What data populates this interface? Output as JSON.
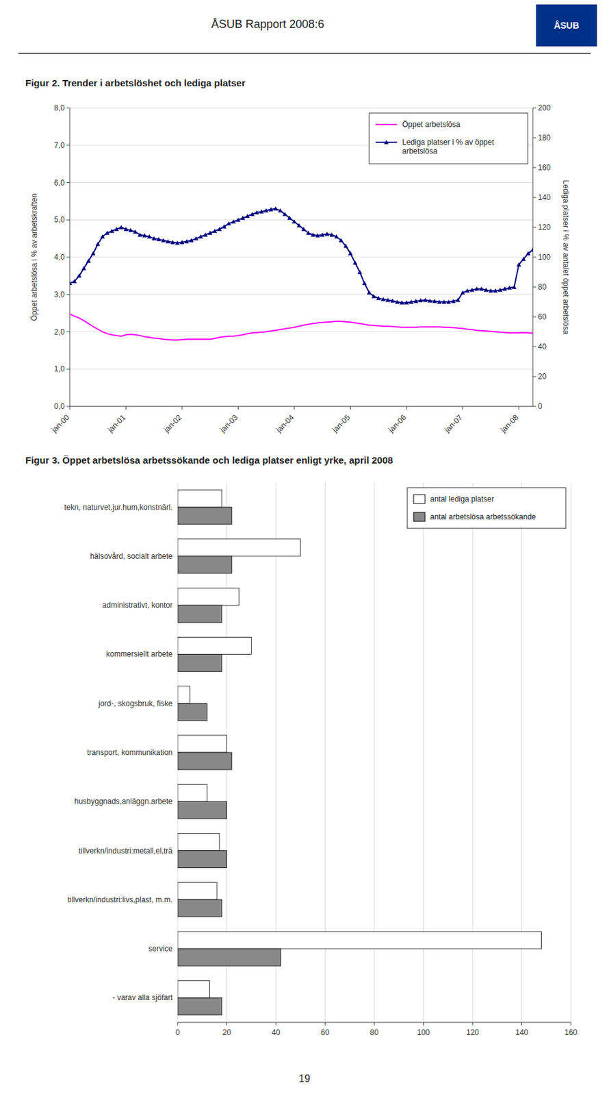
{
  "header_title": "ÅSUB Rapport 2008:6",
  "logo": {
    "text": "ÅSUB",
    "color": "#003087"
  },
  "page_number": "19",
  "chart_data": [
    {
      "type": "line",
      "title": "Figur 2. Trender i arbetslöshet och lediga platser",
      "categories": [
        "jan-00",
        null,
        null,
        null,
        null,
        null,
        null,
        null,
        null,
        null,
        null,
        null,
        "jan-01",
        null,
        null,
        null,
        null,
        null,
        null,
        null,
        null,
        null,
        null,
        null,
        "jan-02",
        null,
        null,
        null,
        null,
        null,
        null,
        null,
        null,
        null,
        null,
        null,
        "jan-03",
        null,
        null,
        null,
        null,
        null,
        null,
        null,
        null,
        null,
        null,
        null,
        "jan-04",
        null,
        null,
        null,
        null,
        null,
        null,
        null,
        null,
        null,
        null,
        null,
        "jan-05",
        null,
        null,
        null,
        null,
        null,
        null,
        null,
        null,
        null,
        null,
        null,
        "jan-06",
        null,
        null,
        null,
        null,
        null,
        null,
        null,
        null,
        null,
        null,
        null,
        "jan-07",
        null,
        null,
        null,
        null,
        null,
        null,
        null,
        null,
        null,
        null,
        null,
        "jan-08",
        null,
        null,
        null
      ],
      "series": [
        {
          "name": "Öppet arbetslösa",
          "color": "#FF00FF",
          "axis": "y",
          "values": [
            2.48,
            2.42,
            2.37,
            2.3,
            2.22,
            2.14,
            2.07,
            2.0,
            1.95,
            1.92,
            1.9,
            1.88,
            1.92,
            1.93,
            1.92,
            1.9,
            1.87,
            1.85,
            1.83,
            1.82,
            1.8,
            1.79,
            1.78,
            1.78,
            1.79,
            1.8,
            1.8,
            1.8,
            1.8,
            1.8,
            1.8,
            1.82,
            1.85,
            1.87,
            1.88,
            1.88,
            1.9,
            1.92,
            1.95,
            1.97,
            1.98,
            1.99,
            2.0,
            2.02,
            2.04,
            2.06,
            2.08,
            2.1,
            2.12,
            2.15,
            2.18,
            2.2,
            2.22,
            2.24,
            2.25,
            2.26,
            2.27,
            2.28,
            2.28,
            2.27,
            2.26,
            2.24,
            2.22,
            2.2,
            2.18,
            2.17,
            2.16,
            2.15,
            2.15,
            2.14,
            2.13,
            2.12,
            2.12,
            2.12,
            2.12,
            2.13,
            2.13,
            2.13,
            2.13,
            2.13,
            2.12,
            2.12,
            2.11,
            2.1,
            2.09,
            2.07,
            2.06,
            2.04,
            2.03,
            2.02,
            2.01,
            2.0,
            1.99,
            1.98,
            1.97,
            1.97,
            1.97,
            1.98,
            1.97,
            1.96
          ]
        },
        {
          "name": "Lediga platser i % av öppet\narbetslösa",
          "color": "#000080",
          "axis": "y2",
          "marker": "triangle",
          "values": [
            82.5,
            83.75,
            87.5,
            92.5,
            97.5,
            102.5,
            108.75,
            113.75,
            116.25,
            117.5,
            118.75,
            120,
            118.75,
            118,
            117,
            115,
            114.5,
            113.75,
            112.5,
            112,
            111.25,
            110.5,
            110,
            109.5,
            110,
            110.5,
            111.25,
            112.5,
            113.75,
            115,
            116.25,
            117.5,
            118.75,
            120.5,
            122.5,
            123.75,
            125,
            126.25,
            127.5,
            128.75,
            130,
            130.5,
            131.25,
            132,
            132.5,
            131.25,
            128.75,
            126.25,
            123.75,
            121.25,
            118.75,
            116.25,
            115,
            114.5,
            115,
            115.5,
            115,
            113.75,
            111.25,
            107.5,
            102.5,
            96.25,
            90,
            82.5,
            76.25,
            73.75,
            72.5,
            71.75,
            71.25,
            70.75,
            70,
            69.5,
            69.5,
            70,
            70.5,
            71,
            71.25,
            70.75,
            70.5,
            70,
            70,
            70,
            70.5,
            71.25,
            76.25,
            77.5,
            78,
            78.75,
            78.75,
            78,
            77.5,
            77.5,
            78,
            78.75,
            79.5,
            80,
            95,
            98.75,
            102.5,
            105
          ]
        }
      ],
      "ylabel": "Öppet arbetslösa i % av arbetskraften",
      "y2label": "Lediga platser i % av antalet öppet arbetslösa",
      "ylim": [
        0.0,
        8.0
      ],
      "yticks": [
        {
          "value": 0.0,
          "label": "0,0"
        },
        {
          "value": 1.0,
          "label": "1,0"
        },
        {
          "value": 2.0,
          "label": "2,0"
        },
        {
          "value": 3.0,
          "label": "3,0"
        },
        {
          "value": 4.0,
          "label": "4,0"
        },
        {
          "value": 5.0,
          "label": "5,0"
        },
        {
          "value": 6.0,
          "label": "6,0"
        },
        {
          "value": 7.0,
          "label": "7,0"
        },
        {
          "value": 8.0,
          "label": "8,0"
        }
      ],
      "y2lim": [
        0,
        200
      ],
      "y2ticks": [
        0,
        20,
        40,
        60,
        80,
        100,
        120,
        140,
        160,
        180,
        200
      ],
      "grid": true,
      "legend": "upper-right"
    },
    {
      "type": "bar",
      "orientation": "horizontal",
      "title": "Figur 3. Öppet arbetslösa arbetssökande och lediga platser enligt yrke, april 2008",
      "categories": [
        "tekn, naturvet,jur.hum,konstnärl.",
        "hälsovård, socialt arbete",
        "administrativt, kontor",
        "kommersiellt arbete",
        "jord-, skogsbruk, fiske",
        "transport, kommunikation",
        "husbyggnads,anläggn.arbete",
        "tillverkn/industri:metall,el,trä",
        "tillverkn/industri:livs,plast, m.m.",
        "service",
        "- varav alla sjöfart"
      ],
      "series": [
        {
          "name": "antal lediga platser",
          "color": "#FFFFFF",
          "values": [
            18,
            50,
            25,
            30,
            5,
            20,
            12,
            17,
            16,
            148,
            13
          ]
        },
        {
          "name": "antal arbetslösa arbetssökande",
          "color": "#888888",
          "values": [
            22,
            22,
            18,
            18,
            12,
            22,
            20,
            20,
            18,
            42,
            18
          ]
        }
      ],
      "xlim": [
        0,
        160
      ],
      "xticks": [
        0,
        20,
        40,
        60,
        80,
        100,
        120,
        140,
        160
      ],
      "grid": true,
      "legend": "upper-right"
    }
  ]
}
